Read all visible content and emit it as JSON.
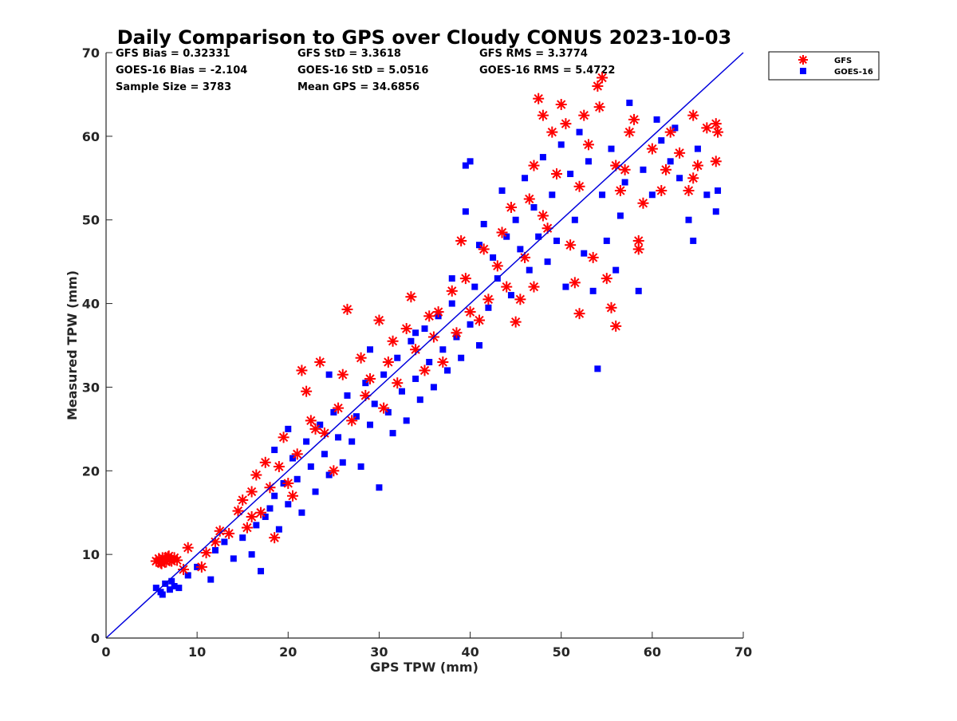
{
  "chart_data": {
    "type": "scatter",
    "title": "Daily Comparison to GPS over Cloudy CONUS 2023-10-03",
    "xlabel": "GPS TPW (mm)",
    "ylabel": "Measured TPW (mm)",
    "xlim": [
      0,
      70
    ],
    "ylim": [
      0,
      70
    ],
    "xticks": [
      "0",
      "10",
      "20",
      "30",
      "40",
      "50",
      "60",
      "70"
    ],
    "yticks": [
      "0",
      "10",
      "20",
      "30",
      "40",
      "50",
      "60",
      "70"
    ],
    "grid": false,
    "legend_position": "outside top-right",
    "reference_line": {
      "name": "1:1",
      "x": [
        0,
        70
      ],
      "y": [
        0,
        70
      ],
      "color": "#0000dd"
    },
    "stats": {
      "row1": [
        "GFS Bias = 0.32331",
        "GFS StD = 3.3618",
        "GFS RMS = 3.3774"
      ],
      "row2": [
        "GOES-16 Bias = -2.104",
        "GOES-16 StD = 5.0516",
        "GOES-16 RMS = 5.4722"
      ],
      "row3": [
        "Sample Size = 3783",
        "Mean GPS = 34.6856"
      ]
    },
    "series": [
      {
        "name": "GFS",
        "marker": "asterisk",
        "color": "#ff0000",
        "points": [
          [
            5.5,
            9.2
          ],
          [
            5.8,
            9.5
          ],
          [
            6.0,
            9.0
          ],
          [
            6.2,
            9.6
          ],
          [
            6.4,
            9.3
          ],
          [
            6.6,
            9.1
          ],
          [
            6.8,
            9.7
          ],
          [
            7.0,
            9.4
          ],
          [
            7.2,
            9.2
          ],
          [
            7.5,
            9.6
          ],
          [
            7.8,
            9.3
          ],
          [
            6.1,
            8.9
          ],
          [
            6.9,
            9.8
          ],
          [
            8.5,
            8.2
          ],
          [
            9.0,
            10.8
          ],
          [
            10.5,
            8.5
          ],
          [
            11.0,
            10.2
          ],
          [
            12.0,
            11.5
          ],
          [
            12.5,
            12.8
          ],
          [
            13.5,
            12.5
          ],
          [
            14.5,
            15.2
          ],
          [
            15.0,
            16.5
          ],
          [
            15.5,
            13.2
          ],
          [
            16.0,
            17.5
          ],
          [
            16.5,
            19.5
          ],
          [
            17.0,
            15.0
          ],
          [
            17.5,
            21.0
          ],
          [
            18.0,
            18.0
          ],
          [
            18.5,
            12.0
          ],
          [
            19.0,
            20.5
          ],
          [
            19.5,
            24.0
          ],
          [
            20.0,
            18.5
          ],
          [
            21.0,
            22.0
          ],
          [
            21.5,
            32.0
          ],
          [
            22.0,
            29.5
          ],
          [
            22.5,
            26.0
          ],
          [
            23.0,
            25.0
          ],
          [
            24.0,
            24.5
          ],
          [
            25.0,
            20.0
          ],
          [
            25.5,
            27.5
          ],
          [
            26.0,
            31.5
          ],
          [
            26.5,
            39.3
          ],
          [
            27.0,
            26.0
          ],
          [
            28.0,
            33.5
          ],
          [
            28.5,
            29.0
          ],
          [
            29.0,
            31.0
          ],
          [
            30.0,
            38.0
          ],
          [
            30.5,
            27.5
          ],
          [
            31.0,
            33.0
          ],
          [
            31.5,
            35.5
          ],
          [
            32.0,
            30.5
          ],
          [
            33.0,
            37.0
          ],
          [
            33.5,
            40.8
          ],
          [
            34.0,
            34.5
          ],
          [
            35.0,
            32.0
          ],
          [
            35.5,
            38.5
          ],
          [
            36.0,
            36.0
          ],
          [
            36.5,
            39.0
          ],
          [
            37.0,
            33.0
          ],
          [
            38.0,
            41.5
          ],
          [
            38.5,
            36.5
          ],
          [
            39.0,
            47.5
          ],
          [
            39.5,
            43.0
          ],
          [
            40.0,
            39.0
          ],
          [
            41.0,
            38.0
          ],
          [
            41.5,
            46.5
          ],
          [
            42.0,
            40.5
          ],
          [
            43.0,
            44.5
          ],
          [
            43.5,
            48.5
          ],
          [
            44.0,
            42.0
          ],
          [
            44.5,
            51.5
          ],
          [
            45.0,
            37.8
          ],
          [
            45.5,
            40.5
          ],
          [
            46.0,
            45.5
          ],
          [
            46.5,
            52.5
          ],
          [
            47.0,
            56.5
          ],
          [
            47.5,
            64.5
          ],
          [
            48.0,
            62.5
          ],
          [
            48.5,
            49.0
          ],
          [
            49.0,
            60.5
          ],
          [
            49.5,
            55.5
          ],
          [
            50.0,
            63.8
          ],
          [
            50.5,
            61.5
          ],
          [
            51.0,
            47.0
          ],
          [
            51.5,
            42.5
          ],
          [
            52.0,
            38.8
          ],
          [
            52.5,
            62.5
          ],
          [
            53.0,
            59.0
          ],
          [
            53.5,
            45.5
          ],
          [
            54.0,
            66.0
          ],
          [
            54.2,
            63.5
          ],
          [
            54.5,
            67.0
          ],
          [
            55.0,
            43.0
          ],
          [
            55.5,
            39.5
          ],
          [
            56.0,
            37.3
          ],
          [
            56.5,
            53.5
          ],
          [
            57.0,
            56.0
          ],
          [
            58.0,
            62.0
          ],
          [
            58.5,
            47.5
          ],
          [
            58.5,
            46.5
          ],
          [
            59.0,
            52.0
          ],
          [
            60.0,
            58.5
          ],
          [
            61.0,
            53.5
          ],
          [
            61.5,
            56.0
          ],
          [
            62.0,
            60.5
          ],
          [
            63.0,
            58.0
          ],
          [
            64.0,
            53.5
          ],
          [
            64.5,
            55.0
          ],
          [
            65.0,
            56.5
          ],
          [
            66.0,
            61.0
          ],
          [
            67.0,
            61.5
          ],
          [
            67.2,
            60.5
          ],
          [
            67.0,
            57.0
          ],
          [
            64.5,
            62.5
          ],
          [
            56.0,
            56.5
          ],
          [
            57.5,
            60.5
          ],
          [
            47.0,
            42.0
          ],
          [
            48.0,
            50.5
          ],
          [
            52.0,
            54.0
          ],
          [
            23.5,
            33.0
          ],
          [
            20.5,
            17.0
          ],
          [
            16.0,
            14.5
          ]
        ]
      },
      {
        "name": "GOES-16",
        "marker": "square",
        "color": "#0000ff",
        "points": [
          [
            5.5,
            6.0
          ],
          [
            6.0,
            5.5
          ],
          [
            6.5,
            6.5
          ],
          [
            7.0,
            5.8
          ],
          [
            7.5,
            6.2
          ],
          [
            8.0,
            6.0
          ],
          [
            6.2,
            5.2
          ],
          [
            7.2,
            6.8
          ],
          [
            9.0,
            7.5
          ],
          [
            10.0,
            8.5
          ],
          [
            11.5,
            7.0
          ],
          [
            12.0,
            10.5
          ],
          [
            13.0,
            11.5
          ],
          [
            14.0,
            9.5
          ],
          [
            15.0,
            12.0
          ],
          [
            16.0,
            10.0
          ],
          [
            16.5,
            13.5
          ],
          [
            17.0,
            8.0
          ],
          [
            17.5,
            14.5
          ],
          [
            18.0,
            15.5
          ],
          [
            18.5,
            17.0
          ],
          [
            19.0,
            13.0
          ],
          [
            19.5,
            18.5
          ],
          [
            20.0,
            16.0
          ],
          [
            20.5,
            21.5
          ],
          [
            21.0,
            19.0
          ],
          [
            21.5,
            15.0
          ],
          [
            22.0,
            23.5
          ],
          [
            22.5,
            20.5
          ],
          [
            23.0,
            17.5
          ],
          [
            23.5,
            25.5
          ],
          [
            24.0,
            22.0
          ],
          [
            24.5,
            19.5
          ],
          [
            25.0,
            27.0
          ],
          [
            25.5,
            24.0
          ],
          [
            26.0,
            21.0
          ],
          [
            26.5,
            29.0
          ],
          [
            27.0,
            23.5
          ],
          [
            27.5,
            26.5
          ],
          [
            28.0,
            20.5
          ],
          [
            28.5,
            30.5
          ],
          [
            29.0,
            25.5
          ],
          [
            29.5,
            28.0
          ],
          [
            30.0,
            18.0
          ],
          [
            30.5,
            31.5
          ],
          [
            31.0,
            27.0
          ],
          [
            31.5,
            24.5
          ],
          [
            32.0,
            33.5
          ],
          [
            32.5,
            29.5
          ],
          [
            33.0,
            26.0
          ],
          [
            33.5,
            35.5
          ],
          [
            34.0,
            31.0
          ],
          [
            34.5,
            28.5
          ],
          [
            35.0,
            37.0
          ],
          [
            35.5,
            33.0
          ],
          [
            36.0,
            30.0
          ],
          [
            36.5,
            38.5
          ],
          [
            37.0,
            34.5
          ],
          [
            37.5,
            32.0
          ],
          [
            38.0,
            40.0
          ],
          [
            38.5,
            36.0
          ],
          [
            39.0,
            33.5
          ],
          [
            39.5,
            51.0
          ],
          [
            40.0,
            37.5
          ],
          [
            40.5,
            42.0
          ],
          [
            41.0,
            35.0
          ],
          [
            41.5,
            49.5
          ],
          [
            42.0,
            39.5
          ],
          [
            42.5,
            45.5
          ],
          [
            43.0,
            43.0
          ],
          [
            43.5,
            53.5
          ],
          [
            44.0,
            48.0
          ],
          [
            44.5,
            41.0
          ],
          [
            45.0,
            50.0
          ],
          [
            45.5,
            46.5
          ],
          [
            46.0,
            55.0
          ],
          [
            46.5,
            44.0
          ],
          [
            47.0,
            51.5
          ],
          [
            47.5,
            48.0
          ],
          [
            48.0,
            57.5
          ],
          [
            48.5,
            45.0
          ],
          [
            49.0,
            53.0
          ],
          [
            49.5,
            47.5
          ],
          [
            50.0,
            59.0
          ],
          [
            50.5,
            42.0
          ],
          [
            51.0,
            55.5
          ],
          [
            51.5,
            50.0
          ],
          [
            52.0,
            60.5
          ],
          [
            52.5,
            46.0
          ],
          [
            53.0,
            57.0
          ],
          [
            53.5,
            41.5
          ],
          [
            54.0,
            32.2
          ],
          [
            54.5,
            53.0
          ],
          [
            55.0,
            47.5
          ],
          [
            55.5,
            58.5
          ],
          [
            56.0,
            44.0
          ],
          [
            56.5,
            50.5
          ],
          [
            57.0,
            54.5
          ],
          [
            57.5,
            64.0
          ],
          [
            58.5,
            41.5
          ],
          [
            59.0,
            56.0
          ],
          [
            60.0,
            53.0
          ],
          [
            61.0,
            59.5
          ],
          [
            62.0,
            57.0
          ],
          [
            63.0,
            55.0
          ],
          [
            64.0,
            50.0
          ],
          [
            64.5,
            47.5
          ],
          [
            65.0,
            58.5
          ],
          [
            66.0,
            53.0
          ],
          [
            67.0,
            51.0
          ],
          [
            67.2,
            53.5
          ],
          [
            62.5,
            61.0
          ],
          [
            60.5,
            62.0
          ],
          [
            40.0,
            57.0
          ],
          [
            39.5,
            56.5
          ],
          [
            41.0,
            47.0
          ],
          [
            38.0,
            43.0
          ],
          [
            34.0,
            36.5
          ],
          [
            20.0,
            25.0
          ],
          [
            18.5,
            22.5
          ],
          [
            24.5,
            31.5
          ],
          [
            29.0,
            34.5
          ]
        ]
      }
    ]
  }
}
